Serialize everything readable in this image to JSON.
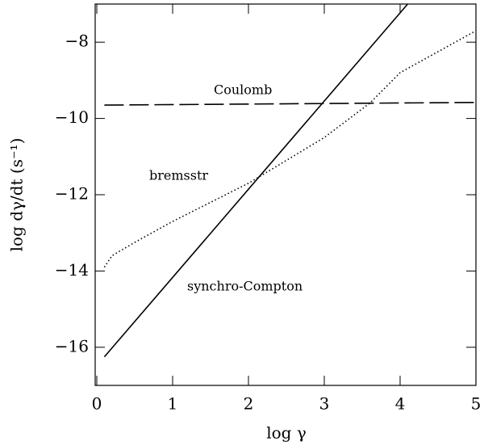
{
  "chart_data": {
    "type": "line",
    "xlabel": "log γ",
    "ylabel": "log dγ/dt (s⁻¹)",
    "xlim": [
      0,
      5
    ],
    "ylim": [
      -17,
      -7
    ],
    "xticks": [
      0,
      1,
      2,
      3,
      4,
      5
    ],
    "yticks": [
      {
        "value": -16,
        "label": "−16"
      },
      {
        "value": -14,
        "label": "−14"
      },
      {
        "value": -12,
        "label": "−12"
      },
      {
        "value": -10,
        "label": "−10"
      },
      {
        "value": -8,
        "label": "−8"
      }
    ],
    "series": [
      {
        "name": "Coulomb",
        "color": "#000000",
        "dash": "dashed",
        "x": [
          0.1,
          5
        ],
        "values": [
          -9.65,
          -9.58
        ]
      },
      {
        "name": "bremsstr",
        "color": "#000000",
        "dash": "dotted",
        "x": [
          0.1,
          0.2,
          0.5,
          1,
          2,
          3,
          3.6,
          4,
          5
        ],
        "values": [
          -13.9,
          -13.6,
          -13.25,
          -12.7,
          -11.7,
          -10.5,
          -9.6,
          -8.8,
          -7.7
        ]
      },
      {
        "name": "synchro-Compton",
        "color": "#000000",
        "dash": "solid",
        "x": [
          0.1,
          4.1
        ],
        "values": [
          -16.25,
          -7
        ]
      }
    ]
  }
}
